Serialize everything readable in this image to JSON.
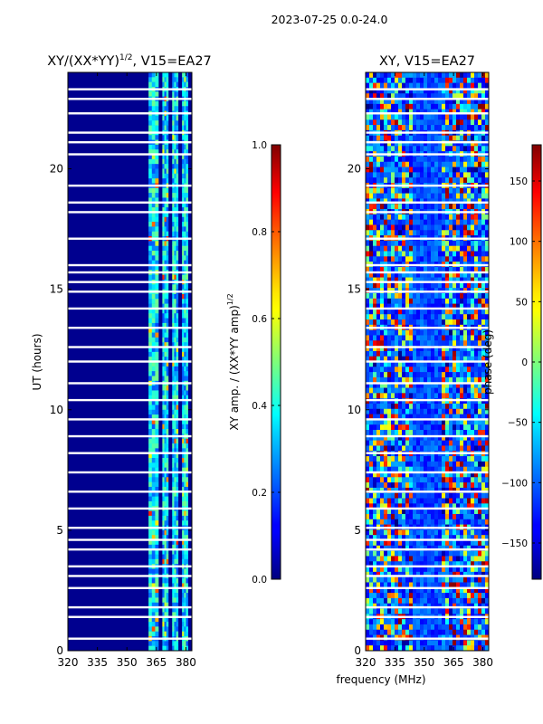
{
  "figure_title": "2023-07-25 0.0-24.0",
  "x_axis_label": "frequency (MHz)",
  "chart_data": [
    {
      "type": "heatmap",
      "id": "amplitude",
      "title": "XY/(XX*YY)^(1/2), V15=EA27",
      "title_main": "XY/(XX*YY)",
      "title_sup": "1/2",
      "title_rest": ", V15=EA27",
      "xlabel": "frequency (MHz)",
      "ylabel": "UT (hours)",
      "xlim": [
        320,
        383
      ],
      "ylim": [
        0,
        24
      ],
      "x_ticks": [
        320,
        335,
        350,
        365,
        380
      ],
      "y_ticks": [
        0,
        5,
        10,
        15,
        20
      ],
      "colorbar": {
        "label": "XY amp. / (XX*YY amp)^(1/2)",
        "label_main": "XY amp. / (XX*YY amp)",
        "label_sup": "1/2",
        "range": [
          0.0,
          1.0
        ],
        "ticks": [
          "0.0",
          "0.2",
          "0.4",
          "0.6",
          "0.8",
          "1.0"
        ],
        "tick_values": [
          0.0,
          0.2,
          0.4,
          0.6,
          0.8,
          1.0
        ],
        "colormap": "jet"
      },
      "bright_channels_mhz": [
        [
          361,
          366
        ],
        [
          368,
          371
        ],
        [
          373,
          376
        ],
        [
          378,
          381
        ]
      ],
      "typical_value_background": 0.1,
      "typical_value_bright": 0.35
    },
    {
      "type": "heatmap",
      "id": "phase",
      "title": "XY, V15=EA27",
      "xlabel": "frequency (MHz)",
      "ylabel": "",
      "xlim": [
        320,
        383
      ],
      "ylim": [
        0,
        24
      ],
      "x_ticks": [
        320,
        335,
        350,
        365,
        380
      ],
      "y_ticks": [
        0,
        5,
        10,
        15,
        20
      ],
      "colorbar": {
        "label": "phase (deg)",
        "range": [
          -180,
          180
        ],
        "ticks": [
          "−150",
          "−100",
          "−50",
          "0",
          "50",
          "100",
          "150"
        ],
        "tick_values": [
          -150,
          -100,
          -50,
          0,
          50,
          100,
          150
        ],
        "colormap": "jet"
      }
    }
  ]
}
